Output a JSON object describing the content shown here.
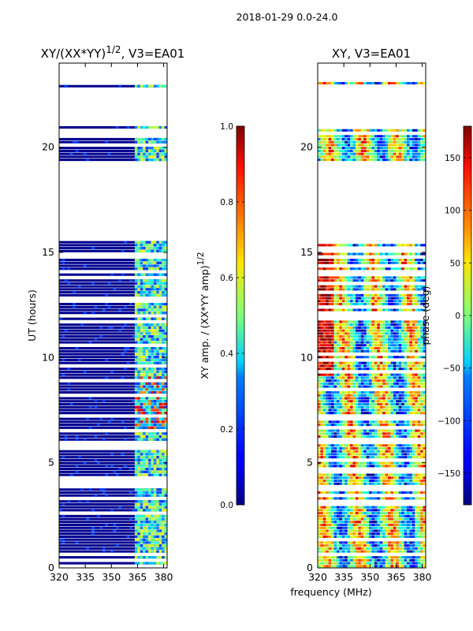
{
  "chart_data": {
    "type": "heatmap",
    "suptitle": "2018-01-29 0.0-24.0",
    "xlabel": "frequency (MHz)",
    "panels": [
      {
        "title": "XY/(XX*YY)",
        "title_sup": "1/2",
        "title_suffix": ", V3=EA01",
        "ylabel": "UT (hours)",
        "xlim": [
          320,
          382
        ],
        "ylim": [
          0,
          24
        ],
        "xticks": [
          320,
          335,
          350,
          365,
          380
        ],
        "yticks": [
          0,
          5,
          10,
          15,
          20
        ],
        "colorbar": {
          "label": "XY amp. / (XX*YY amp)",
          "label_sup": "1/2",
          "range": [
            0.0,
            1.0
          ],
          "ticks": [
            "0.0",
            "0.2",
            "0.4",
            "0.6",
            "0.8",
            "1.0"
          ]
        }
      },
      {
        "title": "XY, V3=EA01",
        "xlim": [
          320,
          382
        ],
        "ylim": [
          0,
          24
        ],
        "xticks": [
          320,
          335,
          350,
          365,
          380
        ],
        "yticks": [
          0,
          5,
          10,
          15,
          20
        ],
        "colorbar": {
          "label": "phase (deg)",
          "range": [
            -180,
            180
          ],
          "ticks": [
            "−150",
            "−100",
            "−50",
            "0",
            "50",
            "100",
            "150"
          ]
        }
      }
    ]
  }
}
